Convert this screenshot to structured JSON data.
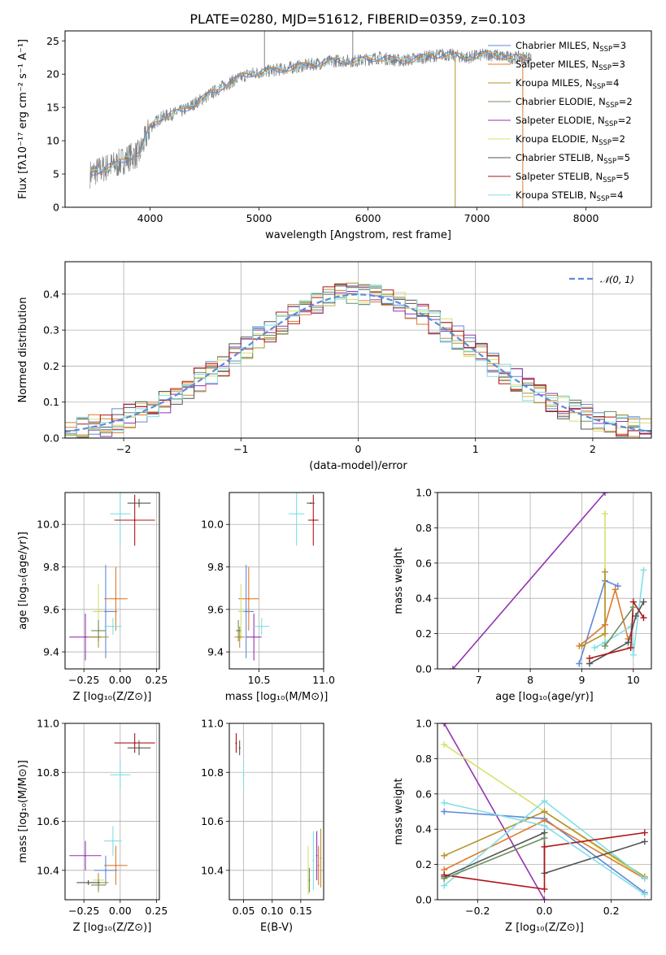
{
  "figure_title": "PLATE=0280, MJD=51612, FIBERID=0359, z=0.103",
  "colors": {
    "chabrier_miles": "#5f8ad8",
    "salpeter_miles": "#e07b2b",
    "kroupa_miles": "#b8912a",
    "chabrier_elodie": "#6f8f5f",
    "salpeter_elodie": "#9234b0",
    "kroupa_elodie": "#d6e06a",
    "chabrier_stelib": "#555555",
    "salpeter_stelib": "#b01515",
    "kroupa_stelib": "#7fdfe6",
    "data": "#808080",
    "normal": "#5f8ad8"
  },
  "chart_data": [
    {
      "id": "spectrum",
      "type": "line",
      "title": "PLATE=0280, MJD=51612, FIBERID=0359, z=0.103",
      "xlabel": "wavelength [Angstrom, rest frame]",
      "ylabel": "Flux [fλ10⁻¹⁷ erg cm⁻² s⁻¹ A⁻¹]",
      "xlim": [
        3220,
        8600
      ],
      "ylim": [
        0,
        26.5
      ],
      "xticks": [
        "4000",
        "5000",
        "6000",
        "7000",
        "8000"
      ],
      "yticks": [
        "0",
        "5",
        "10",
        "15",
        "20",
        "25"
      ],
      "legend_position": "right",
      "legend": [
        "Chabrier MILES, N_SSP=3",
        "Salpeter MILES, N_SSP=3",
        "Kroupa MILES, N_SSP=4",
        "Chabrier ELODIE, N_SSP=2",
        "Salpeter ELODIE, N_SSP=2",
        "Kroupa ELODIE, N_SSP=2",
        "Chabrier STELIB, N_SSP=5",
        "Salpeter STELIB, N_SSP=5",
        "Kroupa STELIB, N_SSP=4"
      ],
      "continuum": {
        "x": [
          3450,
          3600,
          3700,
          3800,
          3900,
          4000,
          4100,
          4300,
          4500,
          4700,
          4900,
          5100,
          5300,
          5500,
          5700,
          5900,
          6100,
          6300,
          6500,
          6700,
          6900,
          7100,
          7300,
          7500
        ],
        "y": [
          5,
          6,
          6.5,
          7.5,
          8,
          12,
          13.5,
          14.5,
          16.5,
          18.5,
          20,
          20.5,
          21,
          21.5,
          22,
          22,
          22.5,
          22,
          22.5,
          23,
          22.5,
          23,
          22.5,
          22.5
        ]
      },
      "spikes": [
        {
          "x": 5050,
          "y": 26.5,
          "color": "data"
        },
        {
          "x": 5860,
          "y": 26.5,
          "color": "data"
        },
        {
          "x": 6800,
          "y": 0,
          "color": "kroupa_miles"
        },
        {
          "x": 7420,
          "y": 0,
          "color": "salpeter_miles"
        }
      ]
    },
    {
      "id": "residuals",
      "type": "histogram",
      "xlabel": "(data-model)/error",
      "ylabel": "Normed distribution",
      "xlim": [
        -2.5,
        2.5
      ],
      "ylim": [
        0,
        0.49
      ],
      "xticks": [
        "−2",
        "−1",
        "0",
        "1",
        "2"
      ],
      "yticks": [
        "0.0",
        "0.1",
        "0.2",
        "0.3",
        "0.4"
      ],
      "legend": [
        "𝒩(0, 1)"
      ],
      "legend_position": "top-right",
      "bin_width": 0.1
    },
    {
      "id": "age_vs_Z",
      "type": "scatter",
      "xlabel": "Z [log₁₀(Z/Z⊙)]",
      "ylabel": "age [log₁₀(age/yr)]",
      "xlim": [
        -0.38,
        0.27
      ],
      "ylim": [
        9.32,
        10.15
      ],
      "xticks": [
        "−0.25",
        "0.00",
        "0.25"
      ],
      "xtick_values": [
        -0.25,
        0,
        0.25
      ],
      "yticks": [
        "9.4",
        "9.6",
        "9.8",
        "10.0"
      ],
      "ytick_values": [
        9.4,
        9.6,
        9.8,
        10.0
      ],
      "points": [
        {
          "s": "chabrier_stelib",
          "x": 0.13,
          "y": 10.1,
          "xe": 0.08,
          "ye": 0.02
        },
        {
          "s": "kroupa_stelib",
          "x": 0.0,
          "y": 10.05,
          "xe": 0.07,
          "ye": 0.15
        },
        {
          "s": "salpeter_stelib",
          "x": 0.1,
          "y": 10.02,
          "xe": 0.14,
          "ye": 0.12
        },
        {
          "s": "chabrier_miles",
          "x": -0.1,
          "y": 9.59,
          "xe": 0.08,
          "ye": 0.22
        },
        {
          "s": "salpeter_miles",
          "x": -0.03,
          "y": 9.65,
          "xe": 0.08,
          "ye": 0.15
        },
        {
          "s": "kroupa_elodie",
          "x": -0.15,
          "y": 9.59,
          "xe": 0.04,
          "ye": 0.13
        },
        {
          "s": "salpeter_elodie",
          "x": -0.24,
          "y": 9.47,
          "xe": 0.11,
          "ye": 0.11
        },
        {
          "s": "kroupa_miles",
          "x": -0.15,
          "y": 9.47,
          "xe": 0.07,
          "ye": 0.05
        },
        {
          "s": "chabrier_elodie",
          "x": -0.15,
          "y": 9.5,
          "xe": 0.05,
          "ye": 0.05
        },
        {
          "s": "kroupa_stelib",
          "x": -0.05,
          "y": 9.52,
          "xe": 0.06,
          "ye": 0.04
        }
      ]
    },
    {
      "id": "age_vs_mass",
      "type": "scatter",
      "xlabel": "mass [log₁₀(M/M⊙)]",
      "ylabel": "",
      "xlim": [
        10.27,
        11.0
      ],
      "ylim": [
        9.32,
        10.15
      ],
      "xticks": [
        "10.5",
        "11.0"
      ],
      "xtick_values": [
        10.5,
        11.0
      ],
      "yticks": [
        "9.4",
        "9.6",
        "9.8",
        "10.0"
      ],
      "ytick_values": [
        9.4,
        9.6,
        9.8,
        10.0
      ],
      "points": [
        {
          "s": "chabrier_stelib",
          "x": 10.9,
          "y": 10.1,
          "xe": 0.03,
          "ye": 0.0
        },
        {
          "s": "kroupa_stelib",
          "x": 10.79,
          "y": 10.05,
          "xe": 0.06,
          "ye": 0.15
        },
        {
          "s": "salpeter_stelib",
          "x": 10.92,
          "y": 10.02,
          "xe": 0.04,
          "ye": 0.12
        },
        {
          "s": "chabrier_miles",
          "x": 10.4,
          "y": 9.59,
          "xe": 0.06,
          "ye": 0.22
        },
        {
          "s": "salpeter_miles",
          "x": 10.42,
          "y": 9.65,
          "xe": 0.08,
          "ye": 0.15
        },
        {
          "s": "kroupa_elodie",
          "x": 10.36,
          "y": 9.59,
          "xe": 0.02,
          "ye": 0.13
        },
        {
          "s": "salpeter_elodie",
          "x": 10.46,
          "y": 9.47,
          "xe": 0.06,
          "ye": 0.11
        },
        {
          "s": "kroupa_miles",
          "x": 10.35,
          "y": 9.47,
          "xe": 0.04,
          "ye": 0.05
        },
        {
          "s": "chabrier_elodie",
          "x": 10.34,
          "y": 9.5,
          "xe": 0.02,
          "ye": 0.05
        },
        {
          "s": "kroupa_stelib",
          "x": 10.52,
          "y": 9.52,
          "xe": 0.06,
          "ye": 0.04
        }
      ]
    },
    {
      "id": "weight_vs_age",
      "type": "line",
      "xlabel": "age [log₁₀(age/yr)]",
      "ylabel": "mass weight",
      "xlim": [
        6.2,
        10.35
      ],
      "ylim": [
        0,
        1.0
      ],
      "xticks": [
        "7",
        "8",
        "9",
        "10"
      ],
      "xtick_values": [
        7,
        8,
        9,
        10
      ],
      "yticks": [
        "0.0",
        "0.2",
        "0.4",
        "0.6",
        "0.8",
        "1.0"
      ],
      "ytick_values": [
        0,
        0.2,
        0.4,
        0.6,
        0.8,
        1.0
      ],
      "series": [
        {
          "s": "salpeter_elodie",
          "x": [
            6.5,
            9.45
          ],
          "y": [
            0.0,
            1.0
          ]
        },
        {
          "s": "kroupa_elodie",
          "x": [
            9.45,
            9.45
          ],
          "y": [
            0.13,
            0.88
          ]
        },
        {
          "s": "chabrier_miles",
          "x": [
            8.95,
            9.45,
            9.7
          ],
          "y": [
            0.03,
            0.5,
            0.47
          ]
        },
        {
          "s": "salpeter_miles",
          "x": [
            8.95,
            9.45,
            9.65,
            9.9
          ],
          "y": [
            0.13,
            0.25,
            0.45,
            0.17
          ]
        },
        {
          "s": "kroupa_miles",
          "x": [
            9.0,
            9.45,
            9.45
          ],
          "y": [
            0.13,
            0.2,
            0.55
          ]
        },
        {
          "s": "kroupa_stelib",
          "x": [
            9.25,
            9.45,
            9.95,
            10.0,
            10.2
          ],
          "y": [
            0.12,
            0.15,
            0.24,
            0.08,
            0.56
          ]
        },
        {
          "s": "chabrier_stelib",
          "x": [
            9.15,
            9.9,
            10.05,
            10.2
          ],
          "y": [
            0.03,
            0.15,
            0.3,
            0.38
          ]
        },
        {
          "s": "salpeter_stelib",
          "x": [
            9.15,
            9.95,
            10.0,
            10.2
          ],
          "y": [
            0.06,
            0.12,
            0.38,
            0.29
          ]
        },
        {
          "s": "chabrier_elodie",
          "x": [
            9.45,
            10.0
          ],
          "y": [
            0.13,
            0.35
          ]
        }
      ]
    },
    {
      "id": "mass_vs_Z",
      "type": "scatter",
      "xlabel": "Z [log₁₀(Z/Z⊙)]",
      "ylabel": "mass [log₁₀(M/M⊙)]",
      "xlim": [
        -0.38,
        0.27
      ],
      "ylim": [
        10.28,
        11.0
      ],
      "xticks": [
        "−0.25",
        "0.00",
        "0.25"
      ],
      "xtick_values": [
        -0.25,
        0,
        0.25
      ],
      "yticks": [
        "10.4",
        "10.6",
        "10.8",
        "11.0"
      ],
      "ytick_values": [
        10.4,
        10.6,
        10.8,
        11.0
      ],
      "points": [
        {
          "s": "salpeter_stelib",
          "x": 0.1,
          "y": 10.92,
          "xe": 0.14,
          "ye": 0.04
        },
        {
          "s": "chabrier_stelib",
          "x": 0.13,
          "y": 10.9,
          "xe": 0.08,
          "ye": 0.03
        },
        {
          "s": "kroupa_stelib",
          "x": 0.0,
          "y": 10.79,
          "xe": 0.07,
          "ye": 0.06
        },
        {
          "s": "salpeter_elodie",
          "x": -0.24,
          "y": 10.46,
          "xe": 0.11,
          "ye": 0.06
        },
        {
          "s": "kroupa_stelib",
          "x": -0.05,
          "y": 10.52,
          "xe": 0.06,
          "ye": 0.06
        },
        {
          "s": "salpeter_miles",
          "x": -0.03,
          "y": 10.42,
          "xe": 0.08,
          "ye": 0.08
        },
        {
          "s": "chabrier_miles",
          "x": -0.1,
          "y": 10.4,
          "xe": 0.08,
          "ye": 0.06
        },
        {
          "s": "kroupa_elodie",
          "x": -0.15,
          "y": 10.36,
          "xe": 0.04,
          "ye": 0.02
        },
        {
          "s": "kroupa_miles",
          "x": -0.15,
          "y": 10.35,
          "xe": 0.07,
          "ye": 0.04
        },
        {
          "s": "chabrier_elodie",
          "x": -0.15,
          "y": 10.34,
          "xe": 0.05,
          "ye": 0.02
        },
        {
          "s": "chabrier_stelib",
          "x": -0.22,
          "y": 10.35,
          "xe": 0.08,
          "ye": 0.01
        }
      ]
    },
    {
      "id": "mass_vs_ebv",
      "type": "scatter",
      "xlabel": "E(B-V)",
      "ylabel": "",
      "xlim": [
        0.025,
        0.19
      ],
      "ylim": [
        10.28,
        11.0
      ],
      "xticks": [
        "0.05",
        "0.10",
        "0.15"
      ],
      "xtick_values": [
        0.05,
        0.1,
        0.15
      ],
      "yticks": [
        "10.4",
        "10.6",
        "10.8",
        "11.0"
      ],
      "ytick_values": [
        10.4,
        10.6,
        10.8,
        11.0
      ],
      "points": [
        {
          "s": "salpeter_stelib",
          "x": 0.037,
          "y": 10.92,
          "xe": 0,
          "ye": 0.04
        },
        {
          "s": "chabrier_stelib",
          "x": 0.043,
          "y": 10.9,
          "xe": 0,
          "ye": 0.03
        },
        {
          "s": "kroupa_stelib",
          "x": 0.05,
          "y": 10.79,
          "xe": 0,
          "ye": 0.06
        },
        {
          "s": "kroupa_elodie",
          "x": 0.163,
          "y": 10.4,
          "xe": 0,
          "ye": 0.1
        },
        {
          "s": "chabrier_elodie",
          "x": 0.165,
          "y": 10.36,
          "xe": 0,
          "ye": 0.05
        },
        {
          "s": "kroupa_stelib",
          "x": 0.172,
          "y": 10.44,
          "xe": 0,
          "ye": 0.12
        },
        {
          "s": "salpeter_elodie",
          "x": 0.178,
          "y": 10.46,
          "xe": 0,
          "ye": 0.1
        },
        {
          "s": "salpeter_miles",
          "x": 0.181,
          "y": 10.42,
          "xe": 0,
          "ye": 0.08
        },
        {
          "s": "kroupa_miles",
          "x": 0.185,
          "y": 10.45,
          "xe": 0,
          "ye": 0.12
        }
      ]
    },
    {
      "id": "weight_vs_Z",
      "type": "line",
      "xlabel": "Z [log₁₀(Z/Z⊙)]",
      "ylabel": "mass weight",
      "xlim": [
        -0.32,
        0.32
      ],
      "ylim": [
        0,
        1.0
      ],
      "xticks": [
        "−0.2",
        "0.0",
        "0.2"
      ],
      "xtick_values": [
        -0.2,
        0,
        0.2
      ],
      "yticks": [
        "0.0",
        "0.2",
        "0.4",
        "0.6",
        "0.8",
        "1.0"
      ],
      "ytick_values": [
        0,
        0.2,
        0.4,
        0.6,
        0.8,
        1.0
      ],
      "series": [
        {
          "s": "salpeter_elodie",
          "x": [
            -0.3,
            0.0
          ],
          "y": [
            1.0,
            0.0
          ]
        },
        {
          "s": "kroupa_elodie",
          "x": [
            -0.3,
            0.3
          ],
          "y": [
            0.88,
            0.12
          ]
        },
        {
          "s": "chabrier_miles",
          "x": [
            -0.3,
            0.0,
            0.3
          ],
          "y": [
            0.5,
            0.46,
            0.04
          ]
        },
        {
          "s": "salpeter_miles",
          "x": [
            -0.3,
            0.0,
            0.3
          ],
          "y": [
            0.17,
            0.45,
            0.12
          ]
        },
        {
          "s": "kroupa_miles",
          "x": [
            -0.3,
            0.0,
            0.3
          ],
          "y": [
            0.25,
            0.5,
            0.13
          ]
        },
        {
          "s": "kroupa_stelib",
          "x": [
            -0.3,
            0.0,
            0.3
          ],
          "y": [
            0.08,
            0.56,
            0.12
          ]
        },
        {
          "s": "chabrier_stelib",
          "x": [
            -0.3,
            0.0,
            0.0,
            0.3
          ],
          "y": [
            0.13,
            0.38,
            0.15,
            0.33
          ]
        },
        {
          "s": "salpeter_stelib",
          "x": [
            -0.3,
            0.0,
            0.0,
            0.3
          ],
          "y": [
            0.14,
            0.06,
            0.3,
            0.38
          ]
        },
        {
          "s": "chabrier_elodie",
          "x": [
            -0.3,
            0.0
          ],
          "y": [
            0.12,
            0.35
          ]
        },
        {
          "s": "kroupa_stelib",
          "x": [
            -0.3,
            0.0,
            0.3
          ],
          "y": [
            0.55,
            0.42,
            0.03
          ]
        }
      ]
    }
  ]
}
